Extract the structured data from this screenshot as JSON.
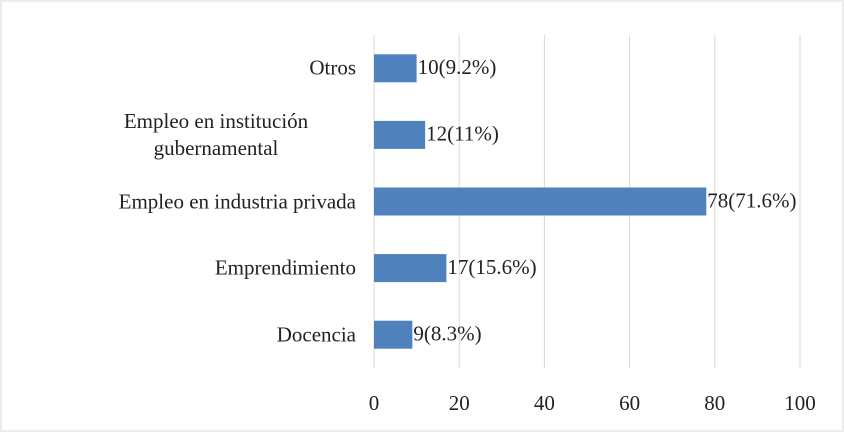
{
  "chart_data": {
    "type": "barh",
    "categories": [
      "Docencia",
      "Emprendimiento",
      "Empleo en industria privada",
      "Empleo en institución gubernamental",
      "Otros"
    ],
    "values": [
      9,
      17,
      78,
      12,
      10
    ],
    "value_labels": [
      "9(8.3%)",
      "17(15.6%)",
      "78(71.6%)",
      "12(11%)",
      "10(9.2%)"
    ],
    "color": "#4f81bd",
    "xlim": [
      0,
      100
    ],
    "xticks": [
      0,
      20,
      40,
      60,
      80,
      100
    ],
    "grid": true
  }
}
